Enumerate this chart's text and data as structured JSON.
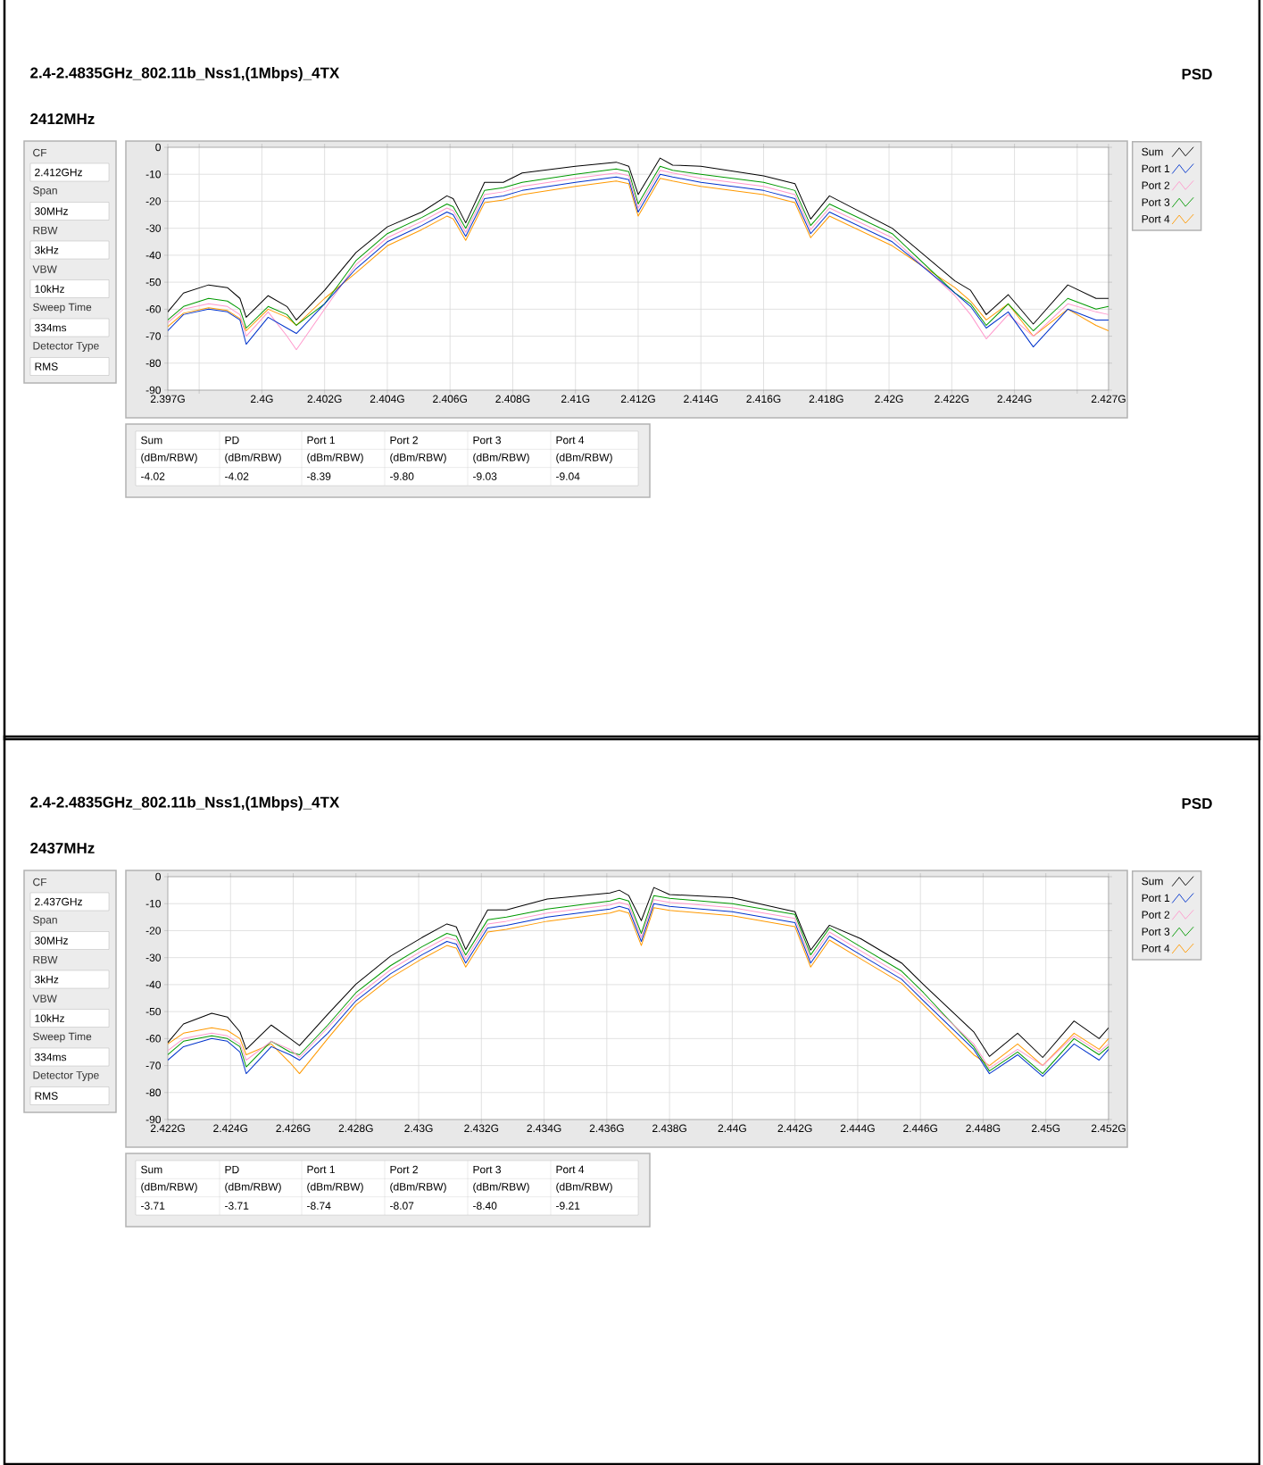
{
  "chart_data": [
    {
      "type": "line",
      "title": "2.4-2.4835GHz_802.11b_Nss1,(1Mbps)_4TX",
      "subtitle": "2412MHz",
      "annotations": [
        "PSD",
        "CF",
        "2.412GHz",
        "Span",
        "30MHz",
        "RBW",
        "3kHz",
        "VBW",
        "10kHz",
        "Sweep Time",
        "334ms",
        "Detector Type",
        "RMS",
        "Sum",
        "PD",
        "Port 1",
        "Port 2",
        "Port 3",
        "Port 4",
        "(dBm/RBW)",
        "(dBm/RBW)",
        "(dBm/RBW)",
        "(dBm/RBW)",
        "(dBm/RBW)",
        "(dBm/RBW)",
        "-4.02",
        "-4.02",
        "-8.39",
        "-9.80",
        "-9.03",
        "-9.04"
      ],
      "x": [
        2.397,
        2.3975,
        2.3983,
        2.3989,
        2.3993,
        2.3995,
        2.4002,
        2.4008,
        2.4011,
        2.402,
        2.403,
        2.404,
        2.4051,
        2.4059,
        2.4061,
        2.4065,
        2.4071,
        2.4077,
        2.4083,
        2.41,
        2.4113,
        2.4117,
        2.412,
        2.4127,
        2.4131,
        2.414,
        2.416,
        2.417,
        2.4175,
        2.4181,
        2.4201,
        2.4221,
        2.4226,
        2.4231,
        2.4238,
        2.4246,
        2.4257,
        2.4266,
        2.427
      ],
      "series": [
        {
          "name": "Sum",
          "color": "#000000",
          "values": [
            -61,
            -54,
            -51,
            -52,
            -56,
            -63,
            -55,
            -59,
            -64,
            -53,
            -39,
            -29.5,
            -24,
            -18,
            -19,
            -28,
            -13,
            -13,
            -9.5,
            -7,
            -5.5,
            -7,
            -17.5,
            -4,
            -6.6,
            -7,
            -10.6,
            -13.5,
            -26.6,
            -18,
            -30,
            -49.5,
            -53,
            -62,
            -54.6,
            -65.5,
            -51,
            -56,
            -56
          ]
        },
        {
          "name": "Port 1",
          "color": "#0033cc",
          "values": [
            -68,
            -62,
            -60,
            -61,
            -64,
            -73,
            -63,
            -67,
            -69,
            -58,
            -45,
            -35,
            -29,
            -24,
            -25,
            -33,
            -19,
            -18,
            -16,
            -13,
            -11,
            -12,
            -24,
            -10,
            -11,
            -13,
            -16,
            -19,
            -32,
            -24,
            -35,
            -54,
            -59,
            -67,
            -61,
            -74,
            -60,
            -64,
            -64
          ]
        },
        {
          "name": "Port 2",
          "color": "#ff99cc",
          "values": [
            -65,
            -60,
            -58,
            -59,
            -62,
            -70,
            -61,
            -70,
            -75,
            -60,
            -43.5,
            -33.5,
            -27.5,
            -22.5,
            -23.5,
            -31.5,
            -17.5,
            -16.5,
            -14.5,
            -11.5,
            -9.5,
            -10.5,
            -22.5,
            -8.5,
            -9.5,
            -11.5,
            -14.5,
            -17.5,
            -30.5,
            -22.5,
            -33.5,
            -55,
            -62,
            -71,
            -62,
            -70,
            -58,
            -61,
            -62
          ]
        },
        {
          "name": "Port 3",
          "color": "#009900",
          "values": [
            -64,
            -59,
            -56,
            -57,
            -60,
            -67,
            -59,
            -62,
            -66,
            -58,
            -42,
            -32,
            -26,
            -21,
            -22,
            -30,
            -16,
            -15,
            -13,
            -10,
            -8,
            -9,
            -21,
            -7,
            -8.5,
            -10,
            -13,
            -16,
            -29,
            -21,
            -32,
            -54,
            -58,
            -66,
            -58,
            -68,
            -56,
            -60,
            -59
          ]
        },
        {
          "name": "Port 4",
          "color": "#ff9900",
          "values": [
            -66.5,
            -61.5,
            -59.5,
            -60.5,
            -63.5,
            -68,
            -60,
            -63,
            -66,
            -56,
            -46.5,
            -36.5,
            -30.5,
            -25.5,
            -26.5,
            -34.5,
            -20.5,
            -19.5,
            -17.5,
            -14.5,
            -12.5,
            -13.5,
            -25.5,
            -11.5,
            -12.5,
            -14.5,
            -17.5,
            -20.5,
            -33.5,
            -25.5,
            -36.5,
            -52,
            -57,
            -64,
            -58,
            -70,
            -60,
            -66,
            -68
          ]
        }
      ],
      "xlim": [
        2.397,
        2.427
      ],
      "ylim": [
        -90,
        0
      ],
      "xticks": [
        {
          "value": 2.397,
          "label": "2.397G"
        },
        {
          "value": 2.398,
          "label": null
        },
        {
          "value": 2.4,
          "label": "2.4G"
        },
        {
          "value": 2.402,
          "label": "2.402G"
        },
        {
          "value": 2.404,
          "label": "2.404G"
        },
        {
          "value": 2.406,
          "label": "2.406G"
        },
        {
          "value": 2.408,
          "label": "2.408G"
        },
        {
          "value": 2.41,
          "label": "2.41G"
        },
        {
          "value": 2.412,
          "label": "2.412G"
        },
        {
          "value": 2.414,
          "label": "2.414G"
        },
        {
          "value": 2.416,
          "label": "2.416G"
        },
        {
          "value": 2.418,
          "label": "2.418G"
        },
        {
          "value": 2.42,
          "label": "2.42G"
        },
        {
          "value": 2.422,
          "label": "2.422G"
        },
        {
          "value": 2.424,
          "label": "2.424G"
        },
        {
          "value": 2.426,
          "label": null
        },
        {
          "value": 2.427,
          "label": "2.427G"
        }
      ],
      "yticks": [
        -90,
        -80,
        -70,
        -60,
        -50,
        -40,
        -30,
        -20,
        -10,
        0
      ],
      "grid": true,
      "legend": "right"
    },
    {
      "type": "line",
      "title": "2.4-2.4835GHz_802.11b_Nss1,(1Mbps)_4TX",
      "subtitle": "2437MHz",
      "annotations": [
        "PSD",
        "CF",
        "2.437GHz",
        "Span",
        "30MHz",
        "RBW",
        "3kHz",
        "VBW",
        "10kHz",
        "Sweep Time",
        "334ms",
        "Detector Type",
        "RMS",
        "Sum",
        "PD",
        "Port 1",
        "Port 2",
        "Port 3",
        "Port 4",
        "(dBm/RBW)",
        "(dBm/RBW)",
        "(dBm/RBW)",
        "(dBm/RBW)",
        "(dBm/RBW)",
        "(dBm/RBW)",
        "-3.71",
        "-3.71",
        "-8.74",
        "-8.07",
        "-8.40",
        "-9.21"
      ],
      "x": [
        2.422,
        2.4225,
        2.4234,
        2.4239,
        2.4243,
        2.4245,
        2.4253,
        2.4259,
        2.4262,
        2.4271,
        2.428,
        2.4291,
        2.4301,
        2.4309,
        2.4312,
        2.4315,
        2.4322,
        2.4328,
        2.4341,
        2.4361,
        2.4364,
        2.4367,
        2.4371,
        2.4375,
        2.438,
        2.44,
        2.442,
        2.4425,
        2.4431,
        2.4441,
        2.4454,
        2.4461,
        2.4477,
        2.4482,
        2.4491,
        2.4499,
        2.4509,
        2.4517,
        2.452
      ],
      "series": [
        {
          "name": "Sum",
          "color": "#000000",
          "values": [
            -61.5,
            -54.6,
            -50.6,
            -52,
            -57.5,
            -64,
            -55,
            -60,
            -62.6,
            -51,
            -39.8,
            -29.5,
            -22.6,
            -17.5,
            -18.6,
            -27,
            -12.3,
            -12.3,
            -8.3,
            -6,
            -5,
            -7,
            -16.3,
            -4,
            -6.6,
            -7.8,
            -13,
            -27.2,
            -18,
            -23,
            -32,
            -40,
            -57.5,
            -66.6,
            -58,
            -67,
            -53.5,
            -60,
            -56
          ]
        },
        {
          "name": "Port 1",
          "color": "#0033cc",
          "values": [
            -68,
            -63,
            -60,
            -61,
            -65,
            -73,
            -63,
            -66,
            -68,
            -58,
            -46,
            -36,
            -29,
            -24,
            -25,
            -32,
            -19,
            -18,
            -15,
            -12,
            -11,
            -12,
            -24,
            -10,
            -11,
            -13,
            -17,
            -32,
            -22,
            -29,
            -38,
            -46,
            -64,
            -73,
            -66,
            -74,
            -62,
            -68,
            -64
          ]
        },
        {
          "name": "Port 2",
          "color": "#ff99cc",
          "values": [
            -64.5,
            -60,
            -58,
            -59,
            -62,
            -68,
            -61,
            -64,
            -67,
            -56,
            -44.5,
            -34.5,
            -27.5,
            -22.5,
            -23.5,
            -30.5,
            -17.5,
            -16.5,
            -13.5,
            -10.5,
            -9.5,
            -10.5,
            -22.5,
            -8.5,
            -9.5,
            -11.5,
            -15.5,
            -30.5,
            -20.5,
            -27.5,
            -36.5,
            -44.5,
            -62,
            -71,
            -64,
            -70,
            -59,
            -65,
            -62
          ]
        },
        {
          "name": "Port 3",
          "color": "#009900",
          "values": [
            -66,
            -61,
            -59,
            -60,
            -63,
            -70.5,
            -61,
            -65,
            -66,
            -55,
            -43,
            -33,
            -26,
            -21,
            -22,
            -29,
            -16,
            -15,
            -12,
            -9,
            -8,
            -9,
            -21,
            -7,
            -8,
            -10,
            -14,
            -29,
            -19,
            -26,
            -35,
            -43,
            -63,
            -72,
            -65,
            -73,
            -60,
            -66,
            -63
          ]
        },
        {
          "name": "Port 4",
          "color": "#ff9900",
          "values": [
            -62,
            -58,
            -56,
            -57,
            -60,
            -66,
            -62,
            -69,
            -73,
            -60,
            -47.5,
            -37.5,
            -30.5,
            -25.5,
            -26.5,
            -33.5,
            -20.5,
            -19.5,
            -16.5,
            -13.5,
            -12.5,
            -13.5,
            -25.5,
            -11.5,
            -12.5,
            -14.5,
            -18.5,
            -33.5,
            -23.5,
            -30.5,
            -39.5,
            -47.5,
            -66,
            -70,
            -62,
            -70,
            -58,
            -64,
            -60
          ]
        }
      ],
      "xlim": [
        2.422,
        2.452
      ],
      "ylim": [
        -90,
        0
      ],
      "xticks": [
        {
          "value": 2.422,
          "label": "2.422G"
        },
        {
          "value": 2.424,
          "label": "2.424G"
        },
        {
          "value": 2.426,
          "label": "2.426G"
        },
        {
          "value": 2.428,
          "label": "2.428G"
        },
        {
          "value": 2.43,
          "label": "2.43G"
        },
        {
          "value": 2.432,
          "label": "2.432G"
        },
        {
          "value": 2.434,
          "label": "2.434G"
        },
        {
          "value": 2.436,
          "label": "2.436G"
        },
        {
          "value": 2.438,
          "label": "2.438G"
        },
        {
          "value": 2.44,
          "label": "2.44G"
        },
        {
          "value": 2.442,
          "label": "2.442G"
        },
        {
          "value": 2.444,
          "label": "2.444G"
        },
        {
          "value": 2.446,
          "label": "2.446G"
        },
        {
          "value": 2.448,
          "label": "2.448G"
        },
        {
          "value": 2.45,
          "label": "2.45G"
        },
        {
          "value": 2.452,
          "label": "2.452G"
        }
      ],
      "yticks": [
        -90,
        -80,
        -70,
        -60,
        -50,
        -40,
        -30,
        -20,
        -10,
        0
      ],
      "grid": true,
      "legend": "right"
    }
  ]
}
